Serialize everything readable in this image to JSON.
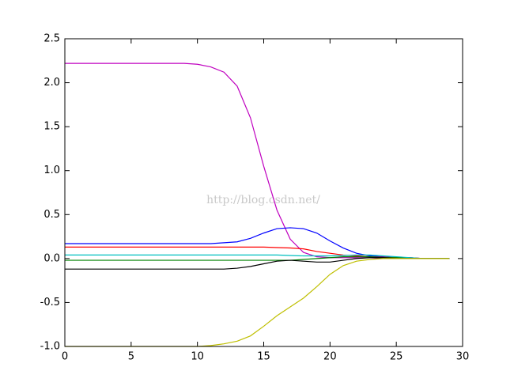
{
  "chart_data": {
    "type": "line",
    "watermark": "http://blog.csdn.net/",
    "x": [
      0,
      1,
      2,
      3,
      4,
      5,
      6,
      7,
      8,
      9,
      10,
      11,
      12,
      13,
      14,
      15,
      16,
      17,
      18,
      19,
      20,
      21,
      22,
      23,
      24,
      25,
      26,
      27,
      28,
      29
    ],
    "series": [
      {
        "color": "#bf00bf",
        "values": [
          2.22,
          2.22,
          2.22,
          2.22,
          2.22,
          2.22,
          2.22,
          2.22,
          2.22,
          2.22,
          2.21,
          2.18,
          2.12,
          1.96,
          1.6,
          1.05,
          0.55,
          0.22,
          0.07,
          0.02,
          0.01,
          0.01,
          0.01,
          0.01,
          0.0,
          0.0,
          0.0,
          0.0,
          0.0,
          0.0
        ]
      },
      {
        "color": "#0000ff",
        "values": [
          0.17,
          0.17,
          0.17,
          0.17,
          0.17,
          0.17,
          0.17,
          0.17,
          0.17,
          0.17,
          0.17,
          0.17,
          0.18,
          0.19,
          0.23,
          0.29,
          0.34,
          0.35,
          0.34,
          0.29,
          0.2,
          0.12,
          0.06,
          0.03,
          0.02,
          0.01,
          0.01,
          0.0,
          0.0,
          0.0
        ]
      },
      {
        "color": "#ff0000",
        "values": [
          0.13,
          0.13,
          0.13,
          0.13,
          0.13,
          0.13,
          0.13,
          0.13,
          0.13,
          0.13,
          0.13,
          0.13,
          0.13,
          0.13,
          0.13,
          0.13,
          0.125,
          0.12,
          0.11,
          0.08,
          0.06,
          0.04,
          0.03,
          0.02,
          0.015,
          0.01,
          0.01,
          0.0,
          0.0,
          0.0
        ]
      },
      {
        "color": "#00bfbf",
        "values": [
          0.04,
          0.04,
          0.04,
          0.04,
          0.04,
          0.04,
          0.04,
          0.04,
          0.04,
          0.04,
          0.04,
          0.04,
          0.04,
          0.04,
          0.04,
          0.04,
          0.04,
          0.035,
          0.03,
          0.03,
          0.03,
          0.035,
          0.04,
          0.04,
          0.03,
          0.02,
          0.01,
          0.0,
          0.0,
          0.0
        ]
      },
      {
        "color": "#008000",
        "values": [
          -0.02,
          -0.02,
          -0.02,
          -0.02,
          -0.02,
          -0.02,
          -0.02,
          -0.02,
          -0.02,
          -0.02,
          -0.02,
          -0.02,
          -0.02,
          -0.02,
          -0.02,
          -0.02,
          -0.02,
          -0.02,
          -0.01,
          0.0,
          0.01,
          0.02,
          0.02,
          0.02,
          0.01,
          0.01,
          0.0,
          0.0,
          0.0,
          0.0
        ]
      },
      {
        "color": "#000000",
        "values": [
          -0.12,
          -0.12,
          -0.12,
          -0.12,
          -0.12,
          -0.12,
          -0.12,
          -0.12,
          -0.12,
          -0.12,
          -0.12,
          -0.12,
          -0.12,
          -0.11,
          -0.09,
          -0.06,
          -0.03,
          -0.02,
          -0.03,
          -0.04,
          -0.04,
          -0.02,
          0.0,
          0.01,
          0.01,
          0.0,
          0.0,
          0.0,
          0.0,
          0.0
        ]
      },
      {
        "color": "#bfbf00",
        "values": [
          -1.0,
          -1.0,
          -1.0,
          -1.0,
          -1.0,
          -1.0,
          -1.0,
          -1.0,
          -1.0,
          -1.0,
          -1.0,
          -0.99,
          -0.97,
          -0.94,
          -0.88,
          -0.77,
          -0.65,
          -0.55,
          -0.45,
          -0.32,
          -0.18,
          -0.08,
          -0.03,
          -0.01,
          0.0,
          0.0,
          0.0,
          0.0,
          0.0,
          0.0
        ]
      }
    ],
    "xlim": [
      0,
      30
    ],
    "xticks": [
      0,
      5,
      10,
      15,
      20,
      25,
      30
    ],
    "ylim": [
      -1,
      2.5
    ],
    "yticks": [
      {
        "value": -1,
        "label": "-1.0"
      },
      -0.5,
      {
        "value": 0,
        "label": "0.0"
      },
      0.5,
      {
        "value": 1,
        "label": "1.0"
      },
      1.5,
      {
        "value": 2,
        "label": "2.0"
      },
      2.5
    ]
  }
}
